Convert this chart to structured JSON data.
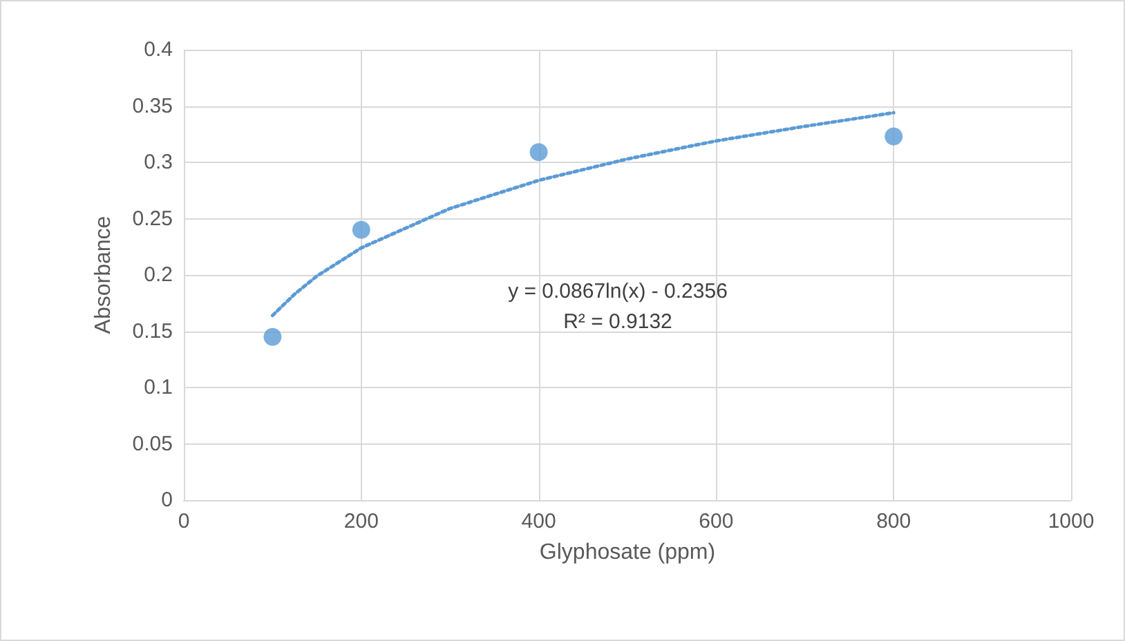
{
  "chart_data": {
    "type": "scatter",
    "xlabel": "Glyphosate (ppm)",
    "ylabel": "Absorbance",
    "annotations": [
      "y = 0.0867ln(x) - 0.2356",
      "R² = 0.9132"
    ],
    "xlim": [
      0,
      1000
    ],
    "xticks": [
      0,
      200,
      400,
      600,
      800,
      1000
    ],
    "ylim": [
      0,
      0.4
    ],
    "yticks": [
      0,
      0.05,
      0.1,
      0.15,
      0.2,
      0.25,
      0.3,
      0.35,
      0.4
    ],
    "grid": true,
    "series": [
      {
        "color": "#5b9bd5",
        "marker": "circle",
        "x": [
          100,
          200,
          400,
          800
        ],
        "values": [
          0.145,
          0.24,
          0.309,
          0.323
        ]
      },
      {
        "type": "line",
        "color": "#5b9bd5",
        "marker": "none",
        "line_style": "dotted",
        "x": [
          100,
          125,
          150,
          200,
          300,
          400,
          500,
          600,
          700,
          800
        ],
        "values": [
          0.164,
          0.183,
          0.199,
          0.224,
          0.259,
          0.284,
          0.303,
          0.319,
          0.332,
          0.344
        ]
      }
    ]
  }
}
